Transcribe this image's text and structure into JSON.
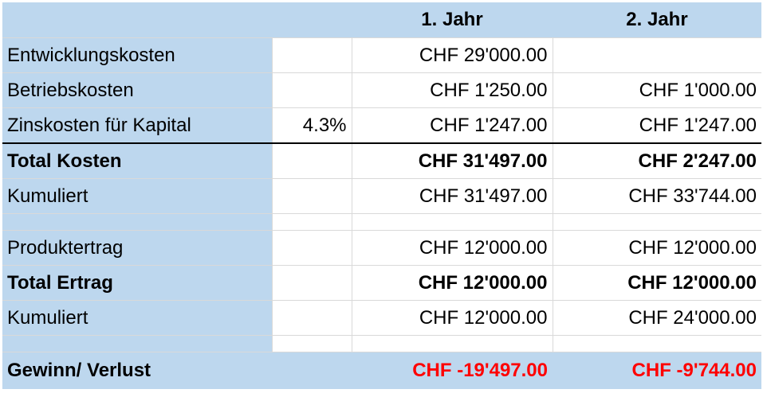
{
  "columns": {
    "year1": "1. Jahr",
    "year2": "2. Jahr"
  },
  "rows": {
    "entwicklung": {
      "label": "Entwicklungskosten",
      "y1": "CHF 29'000.00",
      "y2": ""
    },
    "betrieb": {
      "label": "Betriebskosten",
      "y1": "CHF 1'250.00",
      "y2": "CHF 1'000.00"
    },
    "zins": {
      "label": "Zinskosten für Kapital",
      "rate": "4.3%",
      "y1": "CHF 1'247.00",
      "y2": "CHF 1'247.00"
    },
    "total_kosten": {
      "label": "Total Kosten",
      "y1": "CHF 31'497.00",
      "y2": "CHF 2'247.00"
    },
    "kumuliert_kosten": {
      "label": "Kumuliert",
      "y1": "CHF 31'497.00",
      "y2": "CHF 33'744.00"
    },
    "produktertrag": {
      "label": "Produktertrag",
      "y1": "CHF 12'000.00",
      "y2": "CHF 12'000.00"
    },
    "total_ertrag": {
      "label": "Total Ertrag",
      "y1": "CHF 12'000.00",
      "y2": "CHF 12'000.00"
    },
    "kumuliert_ertrag": {
      "label": "Kumuliert",
      "y1": "CHF 12'000.00",
      "y2": "CHF 24'000.00"
    },
    "gewinn": {
      "label": "Gewinn/ Verlust",
      "y1": "CHF -19'497.00",
      "y2": "CHF -9'744.00"
    }
  },
  "colors": {
    "header_fill": "#bdd7ee",
    "negative": "#ff0000"
  }
}
